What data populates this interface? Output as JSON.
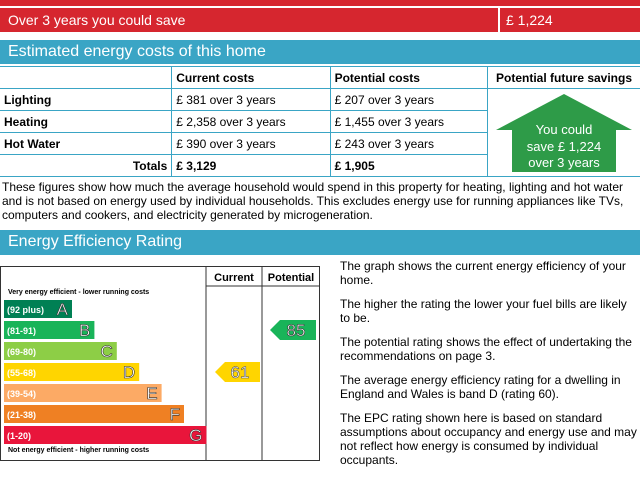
{
  "savings_bar": {
    "label": "Over 3 years you could save",
    "amount": "£ 1,224"
  },
  "costs_section": {
    "title": "Estimated energy costs of this home"
  },
  "table": {
    "headers": [
      "Current costs",
      "Potential costs",
      "Potential future savings"
    ],
    "rows": [
      [
        "Lighting",
        "£ 381 over 3 years",
        "£ 207 over 3 years"
      ],
      [
        "Heating",
        "£ 2,358 over 3 years",
        "£ 1,455 over 3 years"
      ],
      [
        "Hot Water",
        "£ 390 over 3 years",
        "£ 243 over 3 years"
      ],
      [
        "Totals",
        "£ 3,129",
        "£ 1,905"
      ]
    ],
    "savings_box": [
      "You could",
      "save £ 1,224",
      "over 3 years"
    ]
  },
  "note": "These figures show how much the average household would spend in this property for heating, lighting and hot water and is not based on energy used by individual households. This excludes energy use for running appliances like TVs, computers and cookers, and electricity generated by microgeneration.",
  "rating_section": {
    "title": "Energy Efficiency Rating",
    "column_headers": [
      "Current",
      "Potential"
    ],
    "top_note": "Very energy efficient - lower running costs",
    "bottom_note": "Not energy efficient - higher running costs",
    "bands": [
      {
        "range": "(92 plus)",
        "letter": "A"
      },
      {
        "range": "(81-91)",
        "letter": "B"
      },
      {
        "range": "(69-80)",
        "letter": "C"
      },
      {
        "range": "(55-68)",
        "letter": "D"
      },
      {
        "range": "(39-54)",
        "letter": "E"
      },
      {
        "range": "(21-38)",
        "letter": "F"
      },
      {
        "range": "(1-20)",
        "letter": "G"
      }
    ],
    "current": "61",
    "potential": "85",
    "paragraphs": [
      "The graph shows the current energy efficiency of your home.",
      "The higher the rating the lower your fuel bills are likely to be.",
      "The potential rating shows the effect of undertaking the recommendations on page 3.",
      "The average energy efficiency rating for a dwelling in England and Wales is band D (rating 60).",
      "The EPC rating shown here is based on standard assumptions about occupancy and energy use and may not reflect how energy is consumed by individual occupants."
    ]
  }
}
